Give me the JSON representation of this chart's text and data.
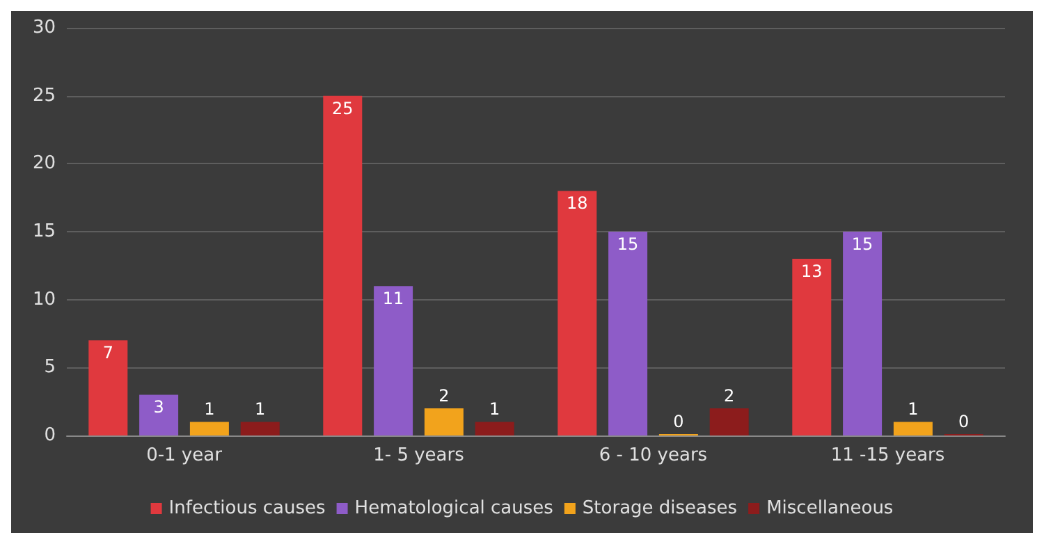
{
  "chart_data": {
    "type": "bar",
    "categories": [
      "0-1 year",
      "1- 5 years",
      "6 - 10 years",
      "11 -15 years"
    ],
    "series": [
      {
        "name": "Infectious causes",
        "color": "#e0393e",
        "values": [
          7,
          25,
          18,
          13
        ]
      },
      {
        "name": "Hematological causes",
        "color": "#8e5cc8",
        "values": [
          3,
          11,
          15,
          15
        ]
      },
      {
        "name": "Storage diseases",
        "color": "#f2a31c",
        "values": [
          1,
          2,
          0,
          1
        ]
      },
      {
        "name": "Miscellaneous",
        "color": "#8c1c1c",
        "values": [
          1,
          1,
          2,
          0
        ]
      }
    ],
    "ylim": [
      0,
      30
    ],
    "yticks": [
      0,
      5,
      10,
      15,
      20,
      25,
      30
    ],
    "grid": "y",
    "legend": "bottom",
    "data_labels": true
  }
}
